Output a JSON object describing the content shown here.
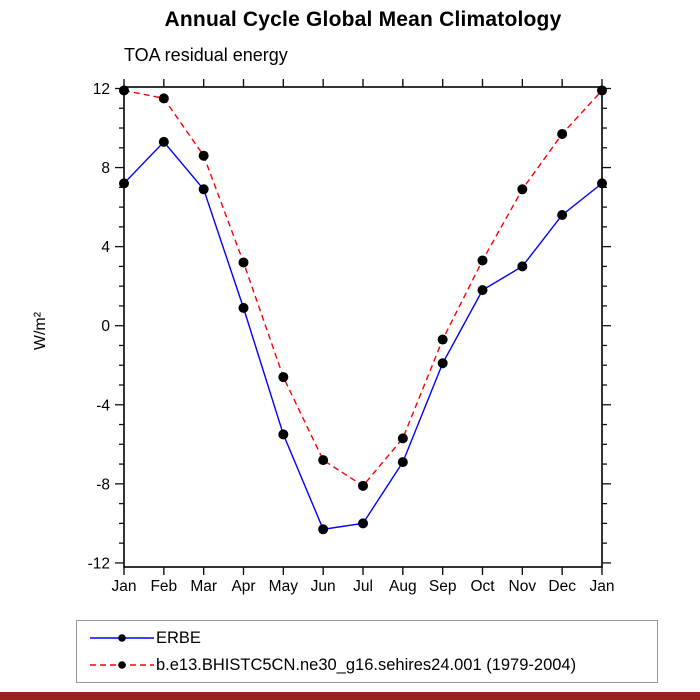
{
  "window": {
    "background": "#ffffff",
    "bottom_bar_color": "#962222",
    "axis_color": "#111111",
    "legend_border_color": "#999999"
  },
  "chart_data": {
    "type": "line",
    "title": "Annual Cycle Global Mean Climatology",
    "subtitle": "TOA residual energy",
    "ylabel": "W/m²",
    "xlabel": "",
    "categories": [
      "Jan",
      "Feb",
      "Mar",
      "Apr",
      "May",
      "Jun",
      "Jul",
      "Aug",
      "Sep",
      "Oct",
      "Nov",
      "Dec",
      "Jan"
    ],
    "ylim": [
      -12,
      12
    ],
    "y_major_ticks": [
      -12,
      -8,
      -4,
      0,
      4,
      8,
      12
    ],
    "y_minor_step": 1,
    "grid": false,
    "legend_position": "bottom-left-box",
    "marker": "filled-circle",
    "series": [
      {
        "name": "ERBE",
        "color": "#0000ff",
        "style": "solid",
        "marker_color": "#000000",
        "values": [
          7.2,
          9.3,
          6.9,
          0.9,
          -5.5,
          -10.3,
          -10.0,
          -6.9,
          -1.9,
          1.8,
          3.0,
          5.6,
          7.2
        ]
      },
      {
        "name": "b.e13.BHISTC5CN.ne30_g16.sehires24.001 (1979-2004)",
        "color": "#ff0000",
        "style": "dashed",
        "marker_color": "#000000",
        "values": [
          11.9,
          11.5,
          8.6,
          3.2,
          -2.6,
          -6.8,
          -8.1,
          -5.7,
          -0.7,
          3.3,
          6.9,
          9.7,
          11.9
        ]
      }
    ]
  }
}
